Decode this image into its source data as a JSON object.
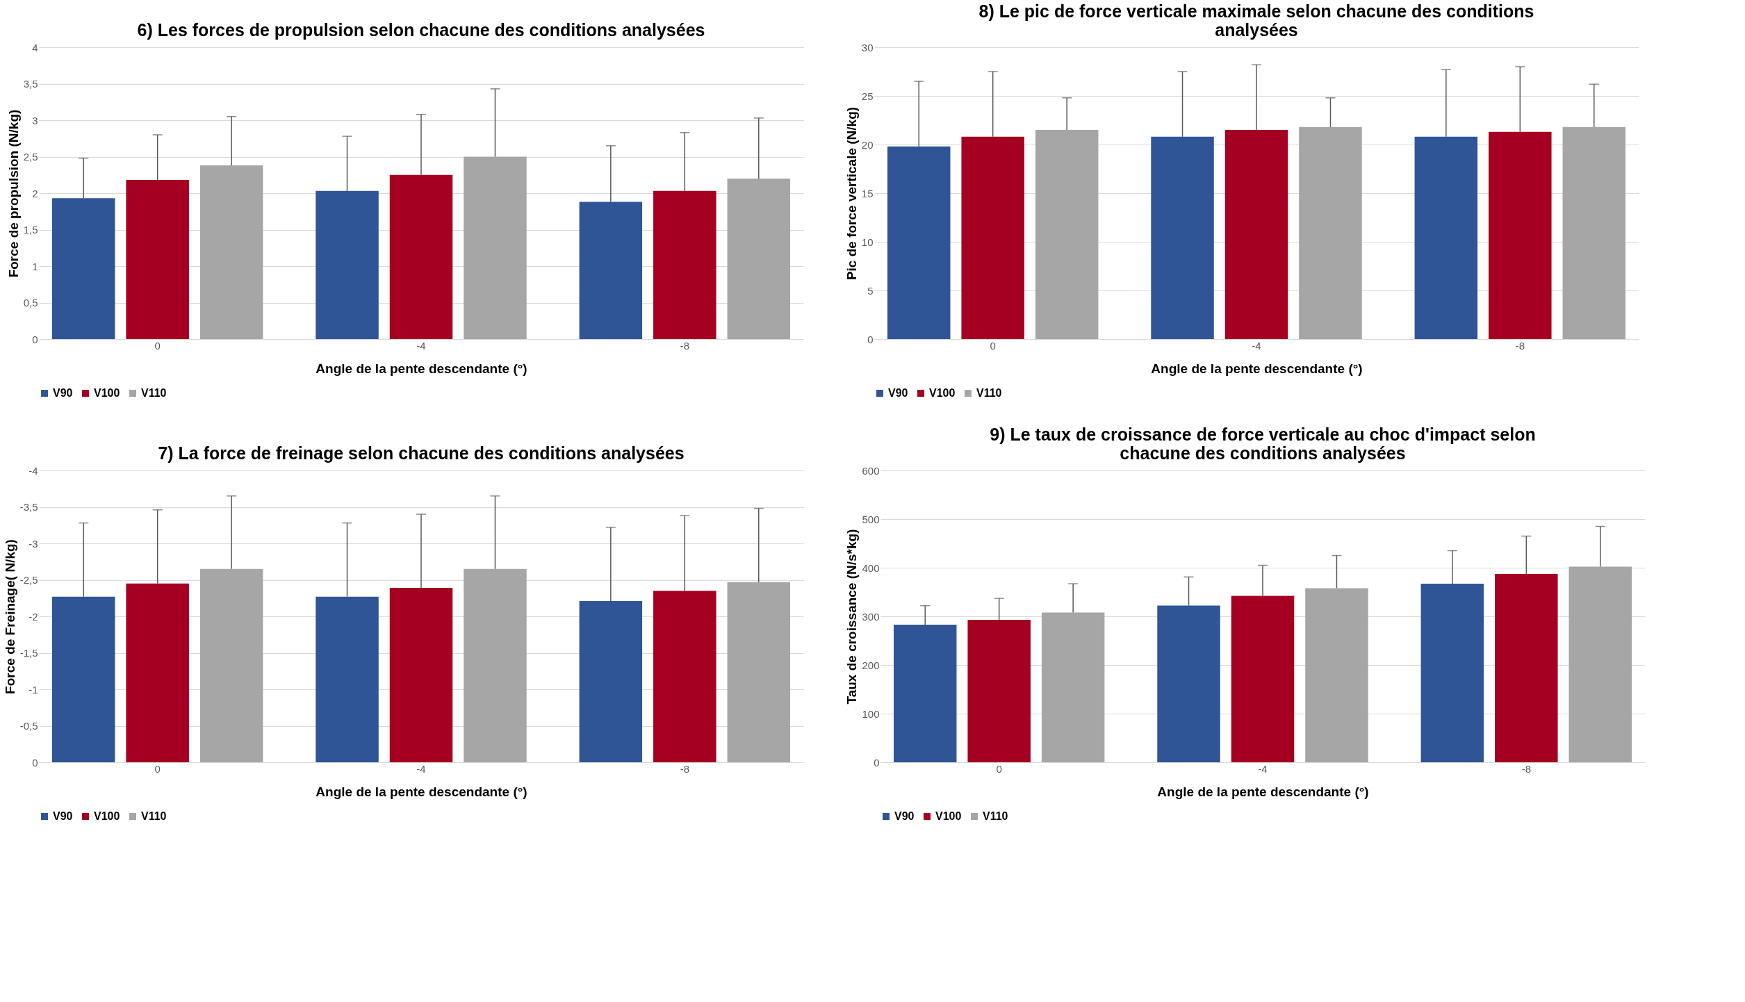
{
  "chart_data": [
    {
      "type": "bar",
      "title": "6) Les forces de propulsion selon chacune des conditions analysées",
      "xlabel": "Angle de la pente descendante (°)",
      "ylabel": "Force de propulsion (N/kg)",
      "categories": [
        "0",
        "-4",
        "-8"
      ],
      "ylim": [
        0,
        4
      ],
      "yticks": [
        0,
        {
          "value": 0.5,
          "label": "0,5"
        },
        1,
        {
          "value": 1.5,
          "label": "1,5"
        },
        2,
        {
          "value": 2.5,
          "label": "2,5"
        },
        3,
        {
          "value": 3.5,
          "label": "3,5"
        },
        4
      ],
      "grid": "y",
      "legend": "bottom",
      "series": [
        {
          "name": "V90",
          "color": "#2f5597",
          "values": [
            1.93,
            2.03,
            1.88
          ],
          "errors": [
            [
              1.93,
              2.48
            ],
            [
              2.03,
              2.78
            ],
            [
              1.88,
              2.65
            ]
          ]
        },
        {
          "name": "V100",
          "color": "#a50021",
          "values": [
            2.18,
            2.25,
            2.03
          ],
          "errors": [
            [
              2.18,
              2.8
            ],
            [
              2.25,
              3.08
            ],
            [
              2.03,
              2.83
            ]
          ]
        },
        {
          "name": "V110",
          "color": "#a6a6a6",
          "values": [
            2.38,
            2.5,
            2.2
          ],
          "errors": [
            [
              2.38,
              3.05
            ],
            [
              2.5,
              3.43
            ],
            [
              2.2,
              3.03
            ]
          ]
        }
      ]
    },
    {
      "type": "bar",
      "title": "8) Le pic de force verticale maximale selon chacune des conditions analysées",
      "xlabel": "Angle de la pente descendante (°)",
      "ylabel": "Pic de force verticale (N/kg)",
      "categories": [
        "0",
        "-4",
        "-8"
      ],
      "ylim": [
        0,
        30
      ],
      "yticks": [
        0,
        5,
        10,
        15,
        20,
        25,
        30
      ],
      "grid": "y",
      "legend": "bottom",
      "series": [
        {
          "name": "V90",
          "color": "#2f5597",
          "values": [
            19.8,
            20.8,
            20.8
          ],
          "errors": [
            [
              19.8,
              26.5
            ],
            [
              20.8,
              27.5
            ],
            [
              20.8,
              27.7
            ]
          ]
        },
        {
          "name": "V100",
          "color": "#a50021",
          "values": [
            20.8,
            21.5,
            21.3
          ],
          "errors": [
            [
              20.8,
              27.5
            ],
            [
              21.5,
              28.2
            ],
            [
              21.3,
              28.0
            ]
          ]
        },
        {
          "name": "V110",
          "color": "#a6a6a6",
          "values": [
            21.5,
            21.8,
            21.8
          ],
          "errors": [
            [
              21.5,
              24.8
            ],
            [
              21.8,
              24.8
            ],
            [
              21.8,
              26.2
            ]
          ]
        }
      ]
    },
    {
      "type": "bar",
      "title": "7) La force de freinage selon chacune des conditions analysées",
      "xlabel": "Angle de la pente descendante (°)",
      "ylabel": "Force de Freinage( N/kg)",
      "categories": [
        "0",
        "-4",
        "-8"
      ],
      "ylim": [
        0,
        -4
      ],
      "yticks": [
        0,
        {
          "value": -0.5,
          "label": "-0,5"
        },
        -1,
        {
          "value": -1.5,
          "label": "-1,5"
        },
        -2,
        {
          "value": -2.5,
          "label": "-2,5"
        },
        -3,
        {
          "value": -3.5,
          "label": "-3,5"
        },
        -4
      ],
      "grid": "y",
      "legend": "bottom",
      "series": [
        {
          "name": "V90",
          "color": "#2f5597",
          "values": [
            -2.27,
            -2.27,
            -2.21
          ],
          "errors": [
            [
              -2.27,
              -3.28
            ],
            [
              -2.27,
              -3.28
            ],
            [
              -2.21,
              -3.22
            ]
          ]
        },
        {
          "name": "V100",
          "color": "#a50021",
          "values": [
            -2.45,
            -2.39,
            -2.35
          ],
          "errors": [
            [
              -2.45,
              -3.46
            ],
            [
              -2.39,
              -3.4
            ],
            [
              -2.35,
              -3.38
            ]
          ]
        },
        {
          "name": "V110",
          "color": "#a6a6a6",
          "values": [
            -2.65,
            -2.65,
            -2.47
          ],
          "errors": [
            [
              -2.65,
              -3.65
            ],
            [
              -2.65,
              -3.65
            ],
            [
              -2.47,
              -3.48
            ]
          ]
        }
      ]
    },
    {
      "type": "bar",
      "title": "9) Le taux de croissance de force verticale au choc d'impact selon chacune des conditions analysées",
      "xlabel": "Angle de la pente descendante (°)",
      "ylabel": "Taux de croissance (N/s*kg)",
      "categories": [
        "0",
        "-4",
        "-8"
      ],
      "ylim": [
        0,
        600
      ],
      "yticks": [
        0,
        100,
        200,
        300,
        400,
        500,
        600
      ],
      "grid": "y",
      "legend": "bottom",
      "series": [
        {
          "name": "V90",
          "color": "#2f5597",
          "values": [
            283,
            322,
            367
          ],
          "errors": [
            [
              283,
              322
            ],
            [
              322,
              381
            ],
            [
              367,
              435
            ]
          ]
        },
        {
          "name": "V100",
          "color": "#a50021",
          "values": [
            293,
            342,
            387
          ],
          "errors": [
            [
              293,
              337
            ],
            [
              342,
              405
            ],
            [
              387,
              465
            ]
          ]
        },
        {
          "name": "V110",
          "color": "#a6a6a6",
          "values": [
            308,
            358,
            402
          ],
          "errors": [
            [
              308,
              367
            ],
            [
              358,
              425
            ],
            [
              402,
              485
            ]
          ]
        }
      ]
    }
  ]
}
